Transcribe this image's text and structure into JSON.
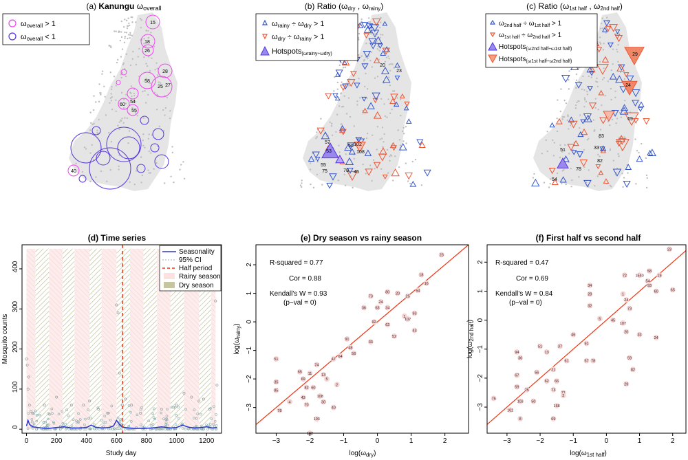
{
  "colors": {
    "magenta": "#ee44ee",
    "purple": "#5533dd",
    "blue": "#3355cc",
    "orange": "#ee5533",
    "rainy_fill": "#fde8e8",
    "dry_fill": "#c9c9a6",
    "grey_map": "#c8c8c8",
    "fit_line": "#ee3311",
    "point_fill": "#f2d6d6"
  },
  "panel_a": {
    "title_prefix": "(a)",
    "title_bold": "Kanungu",
    "title_sym": "ω",
    "title_sub": "overall",
    "legend": [
      {
        "sym": "ω",
        "sub": "overall",
        "rel": " > 1",
        "color": "#ee44ee"
      },
      {
        "sym": "ω",
        "sub": "overall",
        "rel": " < 1",
        "color": "#5533dd"
      }
    ],
    "labels": [
      "15",
      "18",
      "26",
      "28",
      "58",
      "27",
      "25",
      "60",
      "54",
      "55",
      "40"
    ]
  },
  "panel_b": {
    "title_prefix": "(b) Ratio",
    "title_args": "(ω",
    "title_sub1": "dry",
    "title_mid": " , ω",
    "title_sub2": "rainy",
    "title_end": ")",
    "legend": [
      {
        "text": "ω",
        "sub": "rainy",
        "mid": " ÷ ω",
        "sub2": "dry",
        "rel": " > 1",
        "color": "#3355cc",
        "shape": "up"
      },
      {
        "text": "ω",
        "sub": "dry",
        "mid": " ÷ ω",
        "sub2": "rainy",
        "rel": " > 1",
        "color": "#ee5533",
        "shape": "down"
      },
      {
        "text": "Hotspots",
        "sub": "(ω",
        "mid": "",
        "sub2": "rainy÷ωdry)",
        "rel": "",
        "color": "#7755dd",
        "shape": "up-big"
      }
    ],
    "labels": [
      "20",
      "23",
      "57",
      "53",
      "50",
      "102",
      "108",
      "55",
      "75",
      "78",
      "45"
    ]
  },
  "panel_c": {
    "title_prefix": "(c) Ratio",
    "title_args": "(ω",
    "title_sub1": "1st half",
    "title_mid": " , ω",
    "title_sub2": "2nd half",
    "title_end": ")",
    "legend": [
      {
        "text": "ω",
        "sub": "2nd half",
        "mid": " ÷ ω",
        "sub2": "1st half",
        "rel": " > 1",
        "color": "#3355cc",
        "shape": "up"
      },
      {
        "text": "ω",
        "sub": "1st half",
        "mid": " ÷ ω",
        "sub2": "2nd half",
        "rel": " > 1",
        "color": "#ee5533",
        "shape": "down"
      },
      {
        "text": "Hotspots",
        "sub": "(ω2nd half÷ω1st half)",
        "mid": "",
        "sub2": "",
        "rel": "",
        "color": "#7755dd",
        "shape": "up-big"
      },
      {
        "text": "Hotspots",
        "sub": "(ω1st half÷ω2nd half)",
        "mid": "",
        "sub2": "",
        "rel": "",
        "color": "#ee6644",
        "shape": "down-big"
      }
    ],
    "labels": [
      "29",
      "24",
      "69",
      "83",
      "51",
      "33",
      "82",
      "78",
      "54"
    ]
  },
  "chart_data": [
    {
      "id": "d",
      "type": "line",
      "title": "(d) Time series",
      "xlabel": "Study day",
      "ylabel": "Mosquito counts",
      "xlim": [
        -30,
        1300
      ],
      "ylim": [
        -10,
        460
      ],
      "xticks": [
        0,
        200,
        400,
        600,
        800,
        1000,
        1200
      ],
      "yticks": [
        0,
        100,
        200,
        300,
        400
      ],
      "half_period": 640,
      "legend": [
        "Seasonality",
        "95% CI",
        "Half period",
        "Rainy season",
        "Dry season"
      ],
      "rainy_periods": [
        [
          0,
          60
        ],
        [
          150,
          240
        ],
        [
          320,
          420
        ],
        [
          500,
          600
        ],
        [
          690,
          780
        ],
        [
          870,
          960
        ],
        [
          1050,
          1150
        ],
        [
          1230,
          1260
        ]
      ],
      "dry_periods": [
        [
          60,
          150
        ],
        [
          240,
          320
        ],
        [
          420,
          500
        ],
        [
          600,
          690
        ],
        [
          780,
          870
        ],
        [
          960,
          1050
        ],
        [
          1150,
          1230
        ]
      ],
      "series": [
        {
          "name": "Seasonality",
          "x": [
            0,
            10,
            20,
            40,
            60,
            100,
            150,
            200,
            250,
            300,
            350,
            400,
            430,
            460,
            500,
            550,
            580,
            600,
            620,
            640,
            680,
            720,
            780,
            840,
            900,
            960,
            1000,
            1040,
            1080,
            1120,
            1160,
            1200,
            1240,
            1270
          ],
          "y": [
            8,
            22,
            12,
            6,
            5,
            3,
            2,
            4,
            6,
            3,
            3,
            4,
            10,
            5,
            3,
            4,
            8,
            22,
            12,
            5,
            3,
            2,
            2,
            3,
            6,
            3,
            4,
            10,
            5,
            3,
            4,
            6,
            3,
            4
          ]
        }
      ],
      "scatter_high": [
        [
          0,
          175
        ],
        [
          5,
          160
        ],
        [
          10,
          100
        ],
        [
          15,
          130
        ],
        [
          20,
          60
        ],
        [
          30,
          45
        ],
        [
          40,
          40
        ],
        [
          120,
          60
        ],
        [
          200,
          80
        ],
        [
          300,
          60
        ],
        [
          380,
          60
        ],
        [
          420,
          70
        ],
        [
          480,
          50
        ],
        [
          540,
          40
        ],
        [
          600,
          310
        ],
        [
          610,
          290
        ],
        [
          620,
          140
        ],
        [
          640,
          60
        ],
        [
          660,
          75
        ],
        [
          700,
          60
        ],
        [
          760,
          40
        ],
        [
          900,
          50
        ],
        [
          1000,
          60
        ],
        [
          1050,
          90
        ],
        [
          1100,
          80
        ],
        [
          1150,
          70
        ],
        [
          1180,
          75
        ],
        [
          1220,
          50
        ],
        [
          1260,
          320
        ],
        [
          1270,
          110
        ]
      ]
    },
    {
      "id": "e",
      "type": "scatter",
      "title": "(e) Dry season vs rainy season",
      "xlabel": "log(ω",
      "xlabel_sub": "dry",
      "ylabel": "log(ω",
      "ylabel_sub": "rainy",
      "xlim": [
        -3.6,
        2.7
      ],
      "ylim": [
        -3.9,
        2.7
      ],
      "xticks": [
        -3,
        -2,
        -1,
        0,
        1,
        2
      ],
      "yticks": [
        -3,
        -2,
        -1,
        0,
        1,
        2
      ],
      "stats": [
        "R-squared =  0.77",
        "Cor =  0.88",
        "Kendall's W = 0.93",
        "(p−val = 0)"
      ],
      "points": [
        {
          "x": 1.9,
          "y": 2.35,
          "label": "23"
        },
        {
          "x": 1.3,
          "y": 1.65,
          "label": "18"
        },
        {
          "x": 1.45,
          "y": 1.35,
          "label": "16"
        },
        {
          "x": 1.2,
          "y": 1.1,
          "label": "54"
        },
        {
          "x": 0.9,
          "y": 0.9,
          "label": "25"
        },
        {
          "x": 0.6,
          "y": 1.0,
          "label": "20"
        },
        {
          "x": 0.3,
          "y": 1.05,
          "label": "80"
        },
        {
          "x": 0.1,
          "y": 0.7,
          "label": "24"
        },
        {
          "x": -0.2,
          "y": 0.9,
          "label": "73"
        },
        {
          "x": 0.0,
          "y": 0.5,
          "label": "63"
        },
        {
          "x": 0.3,
          "y": 0.5,
          "label": "34"
        },
        {
          "x": 1.1,
          "y": 0.3,
          "label": "93"
        },
        {
          "x": 0.8,
          "y": 0.2,
          "label": "1"
        },
        {
          "x": -0.4,
          "y": 0.5,
          "label": "36"
        },
        {
          "x": -0.1,
          "y": 0.0,
          "label": "92"
        },
        {
          "x": 0.3,
          "y": -0.1,
          "label": "62"
        },
        {
          "x": 0.9,
          "y": 0.1,
          "label": "107"
        },
        {
          "x": 1.1,
          "y": -0.3,
          "label": "43"
        },
        {
          "x": -0.9,
          "y": -0.6,
          "label": "91"
        },
        {
          "x": -0.8,
          "y": -0.9,
          "label": "48"
        },
        {
          "x": -0.2,
          "y": -0.7,
          "label": "33"
        },
        {
          "x": 0.5,
          "y": -0.5,
          "label": "52"
        },
        {
          "x": -1.1,
          "y": -1.2,
          "label": "64"
        },
        {
          "x": -1.3,
          "y": -1.3,
          "label": "47"
        },
        {
          "x": -0.7,
          "y": -1.1,
          "label": "56"
        },
        {
          "x": -3.0,
          "y": -1.3,
          "label": "51"
        },
        {
          "x": -1.8,
          "y": -1.5,
          "label": "74"
        },
        {
          "x": -2.0,
          "y": -1.8,
          "label": "11"
        },
        {
          "x": -1.6,
          "y": -1.85,
          "label": "13"
        },
        {
          "x": -1.5,
          "y": -2.0,
          "label": "5"
        },
        {
          "x": -2.2,
          "y": -2.0,
          "label": "69"
        },
        {
          "x": -2.3,
          "y": -1.75,
          "label": "65"
        },
        {
          "x": -3.0,
          "y": -2.1,
          "label": "35"
        },
        {
          "x": -3.0,
          "y": -2.4,
          "label": "85"
        },
        {
          "x": -1.2,
          "y": -2.2,
          "label": "2"
        },
        {
          "x": -1.9,
          "y": -2.3,
          "label": "60"
        },
        {
          "x": -2.1,
          "y": -2.3,
          "label": "82"
        },
        {
          "x": -1.7,
          "y": -2.6,
          "label": "108"
        },
        {
          "x": -2.2,
          "y": -2.65,
          "label": "43"
        },
        {
          "x": -1.6,
          "y": -2.8,
          "label": "30"
        },
        {
          "x": -2.1,
          "y": -2.9,
          "label": "70"
        },
        {
          "x": -1.3,
          "y": -3.0,
          "label": "40"
        },
        {
          "x": -2.6,
          "y": -2.8,
          "label": "4"
        },
        {
          "x": -2.9,
          "y": -3.1,
          "label": "78"
        },
        {
          "x": -1.8,
          "y": -3.4,
          "label": "103"
        },
        {
          "x": -2.0,
          "y": -3.9,
          "label": "102"
        }
      ]
    },
    {
      "id": "f",
      "type": "scatter",
      "title": "(f) First half vs second half",
      "xlabel": "log(ω",
      "xlabel_sub": "1st half",
      "ylabel": "log(ω",
      "ylabel_sub": "2nd half",
      "xlim": [
        -3.6,
        2.4
      ],
      "ylim": [
        -3.9,
        2.6
      ],
      "xticks": [
        -3,
        -2,
        -1,
        0,
        1,
        2
      ],
      "yticks": [
        -3,
        -2,
        -1,
        0,
        1,
        2
      ],
      "stats": [
        "R-squared =  0.47",
        "Cor =  0.69",
        "Kendall's W = 0.84",
        "(p−val = 0)"
      ],
      "points": [
        {
          "x": 1.9,
          "y": 2.45,
          "label": "23"
        },
        {
          "x": 1.3,
          "y": 1.7,
          "label": "58"
        },
        {
          "x": 1.6,
          "y": 1.55,
          "label": "19"
        },
        {
          "x": 1.0,
          "y": 1.55,
          "label": "1540"
        },
        {
          "x": 1.25,
          "y": 1.35,
          "label": "54"
        },
        {
          "x": 0.55,
          "y": 1.55,
          "label": "72"
        },
        {
          "x": 1.3,
          "y": 1.2,
          "label": "93"
        },
        {
          "x": 1.5,
          "y": 1.0,
          "label": "60"
        },
        {
          "x": 2.0,
          "y": 1.05,
          "label": "65"
        },
        {
          "x": -0.5,
          "y": 1.2,
          "label": "34"
        },
        {
          "x": 0.5,
          "y": 0.9,
          "label": "1"
        },
        {
          "x": -0.5,
          "y": 0.9,
          "label": "28"
        },
        {
          "x": 0.6,
          "y": 0.7,
          "label": "24"
        },
        {
          "x": -0.5,
          "y": 0.5,
          "label": "32"
        },
        {
          "x": 0.7,
          "y": 0.4,
          "label": "73"
        },
        {
          "x": -0.2,
          "y": 0.05,
          "label": "5"
        },
        {
          "x": 0.2,
          "y": 0.0,
          "label": "45"
        },
        {
          "x": 0.5,
          "y": -0.1,
          "label": "107"
        },
        {
          "x": 0.6,
          "y": -0.4,
          "label": "20"
        },
        {
          "x": 1.0,
          "y": -0.5,
          "label": "33"
        },
        {
          "x": 1.5,
          "y": -0.6,
          "label": "24"
        },
        {
          "x": -1.0,
          "y": -0.5,
          "label": "46"
        },
        {
          "x": -0.6,
          "y": -0.8,
          "label": "91"
        },
        {
          "x": -1.4,
          "y": -0.9,
          "label": "37"
        },
        {
          "x": -2.0,
          "y": -0.9,
          "label": "51"
        },
        {
          "x": -1.8,
          "y": -1.1,
          "label": "13"
        },
        {
          "x": -2.7,
          "y": -1.1,
          "label": "94"
        },
        {
          "x": -2.6,
          "y": -1.3,
          "label": "36"
        },
        {
          "x": -1.2,
          "y": -1.4,
          "label": "61"
        },
        {
          "x": -0.6,
          "y": -1.4,
          "label": "57"
        },
        {
          "x": -0.4,
          "y": -1.4,
          "label": "78"
        },
        {
          "x": 0.7,
          "y": -1.3,
          "label": "59"
        },
        {
          "x": 0.8,
          "y": -1.7,
          "label": "82"
        },
        {
          "x": -2.1,
          "y": -1.8,
          "label": "56"
        },
        {
          "x": -1.6,
          "y": -1.7,
          "label": "21"
        },
        {
          "x": -2.7,
          "y": -1.9,
          "label": "67"
        },
        {
          "x": -1.8,
          "y": -2.1,
          "label": "62"
        },
        {
          "x": -1.5,
          "y": -2.1,
          "label": "66"
        },
        {
          "x": -2.7,
          "y": -2.3,
          "label": "59"
        },
        {
          "x": -2.4,
          "y": -2.4,
          "label": "25"
        },
        {
          "x": -1.6,
          "y": -2.4,
          "label": "73"
        },
        {
          "x": -1.3,
          "y": -2.5,
          "label": "71"
        },
        {
          "x": 0.6,
          "y": -2.2,
          "label": "29"
        },
        {
          "x": -1.3,
          "y": -2.6,
          "label": "2"
        },
        {
          "x": -3.4,
          "y": -2.7,
          "label": "76"
        },
        {
          "x": -2.6,
          "y": -2.8,
          "label": "103"
        },
        {
          "x": -2.2,
          "y": -2.8,
          "label": "50"
        },
        {
          "x": -1.5,
          "y": -2.95,
          "label": "168"
        },
        {
          "x": -2.9,
          "y": -3.1,
          "label": "102"
        },
        {
          "x": -2.6,
          "y": -3.4,
          "label": "8"
        },
        {
          "x": -1.6,
          "y": -3.4,
          "label": "69"
        }
      ]
    }
  ]
}
